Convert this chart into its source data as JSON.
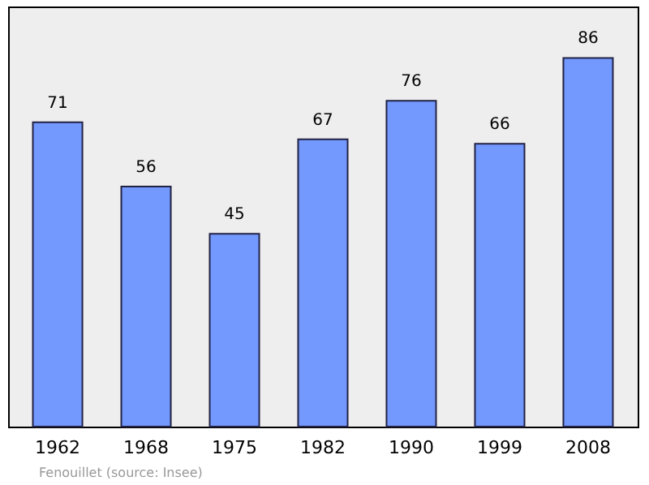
{
  "chart_data": {
    "type": "bar",
    "categories": [
      "1962",
      "1968",
      "1975",
      "1982",
      "1990",
      "1999",
      "2008"
    ],
    "values": [
      71,
      56,
      45,
      67,
      76,
      66,
      86
    ],
    "color": "#7399ff",
    "ylim": [
      0,
      98
    ],
    "data_labels": true,
    "annotations": [
      "Fenouillet    (source: Insee)"
    ]
  }
}
